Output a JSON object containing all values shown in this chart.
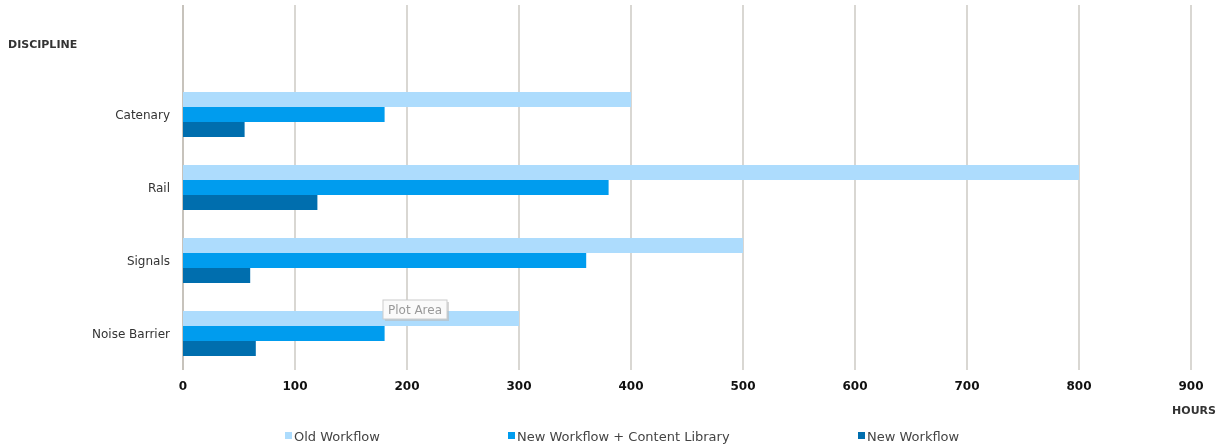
{
  "chart_data": {
    "type": "bar",
    "orientation": "horizontal",
    "ylabel": "DISCIPLINE",
    "xlabel": "HOURS",
    "categories": [
      "Catenary",
      "Rail",
      "Signals",
      "Noise Barrier"
    ],
    "series": [
      {
        "name": "Old Workflow",
        "color": "#addcfd",
        "values": [
          400,
          800,
          500,
          300
        ]
      },
      {
        "name": "New Workflow + Content Library",
        "color": "#009cee",
        "values": [
          180,
          380,
          360,
          180
        ]
      },
      {
        "name": "New Workflow",
        "color": "#006eae",
        "values": [
          55,
          120,
          60,
          65
        ]
      }
    ],
    "xlim": [
      0,
      900
    ],
    "xticks": [
      0,
      100,
      200,
      300,
      400,
      500,
      600,
      700,
      800,
      900
    ],
    "grid": "x",
    "legend": "bottom",
    "annotations": [
      "Plot Area"
    ]
  }
}
